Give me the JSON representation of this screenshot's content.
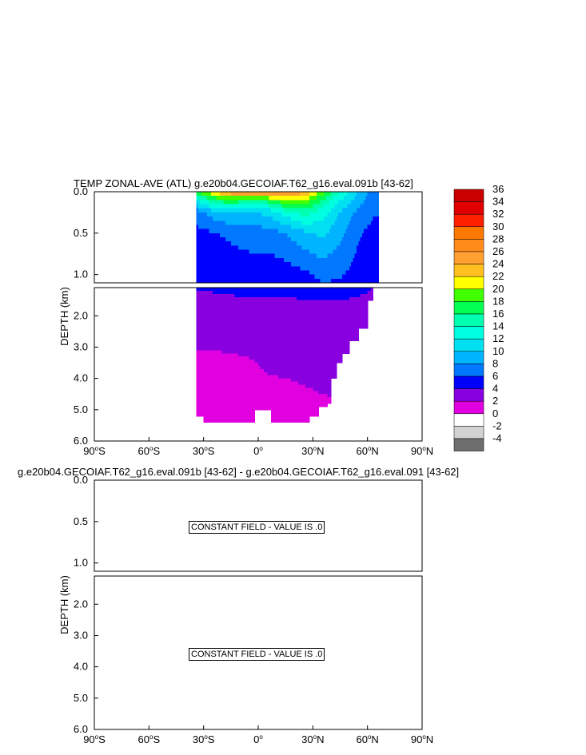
{
  "panels": [
    {
      "title": "TEMP ZONAL-AVE (ATL) g.e20b04.GECOIAF.T62_g16.eval.091b [43-62]",
      "ylabel": "DEPTH (km)",
      "y_upper_ticks": [
        "0.0",
        "0.5",
        "1.0"
      ],
      "y_lower_ticks": [
        "2.0",
        "3.0",
        "4.0",
        "5.0",
        "6.0"
      ],
      "x_ticks": [
        {
          "deg": "90",
          "hemi": "S"
        },
        {
          "deg": "60",
          "hemi": "S"
        },
        {
          "deg": "30",
          "hemi": "S"
        },
        {
          "deg": "0",
          "hemi": ""
        },
        {
          "deg": "30",
          "hemi": "N"
        },
        {
          "deg": "60",
          "hemi": "N"
        },
        {
          "deg": "90",
          "hemi": "N"
        }
      ]
    },
    {
      "title": "g.e20b04.GECOIAF.T62_g16.eval.091b [43-62] - g.e20b04.GECOIAF.T62_g16.eval.091 [43-62]",
      "ylabel": "DEPTH (km)",
      "y_upper_ticks": [
        "0.0",
        "0.5",
        "1.0"
      ],
      "y_lower_ticks": [
        "2.0",
        "3.0",
        "4.0",
        "5.0",
        "6.0"
      ],
      "x_ticks": [
        {
          "deg": "90",
          "hemi": "S"
        },
        {
          "deg": "60",
          "hemi": "S"
        },
        {
          "deg": "30",
          "hemi": "S"
        },
        {
          "deg": "0",
          "hemi": ""
        },
        {
          "deg": "30",
          "hemi": "N"
        },
        {
          "deg": "60",
          "hemi": "N"
        },
        {
          "deg": "90",
          "hemi": "N"
        }
      ],
      "notice_upper": "CONSTANT FIELD - VALUE IS .0",
      "notice_lower": "CONSTANT FIELD - VALUE IS .0"
    }
  ],
  "chart_data": [
    {
      "type": "heatmap",
      "title": "TEMP ZONAL-AVE (ATL) g.e20b04.GECOIAF.T62_g16.eval.091b [43-62]",
      "xlabel": "",
      "ylabel": "DEPTH (km)",
      "xlim": [
        -90,
        90
      ],
      "ylim_upper_km": [
        0,
        1.1
      ],
      "ylim_lower_km": [
        1.1,
        6.0
      ],
      "data_lat_range": [
        -34,
        66
      ],
      "max_depth_km": 5.4,
      "colorbar": {
        "labels": [
          "36",
          "34",
          "32",
          "30",
          "28",
          "26",
          "24",
          "22",
          "20",
          "18",
          "16",
          "14",
          "12",
          "10",
          "8",
          "6",
          "4",
          "2",
          "0",
          "-2",
          "-4"
        ],
        "bins": [
          {
            "lo": 34,
            "hi": 36,
            "color": "#c80000"
          },
          {
            "lo": 32,
            "hi": 34,
            "color": "#e00000"
          },
          {
            "lo": 30,
            "hi": 32,
            "color": "#ff2000"
          },
          {
            "lo": 28,
            "hi": 30,
            "color": "#ff7800"
          },
          {
            "lo": 26,
            "hi": 28,
            "color": "#ff8c1a"
          },
          {
            "lo": 24,
            "hi": 26,
            "color": "#ffa030"
          },
          {
            "lo": 22,
            "hi": 24,
            "color": "#ffc020"
          },
          {
            "lo": 20,
            "hi": 22,
            "color": "#ffff00"
          },
          {
            "lo": 18,
            "hi": 20,
            "color": "#40ff00"
          },
          {
            "lo": 16,
            "hi": 18,
            "color": "#00ff50"
          },
          {
            "lo": 14,
            "hi": 16,
            "color": "#00ffb0"
          },
          {
            "lo": 12,
            "hi": 14,
            "color": "#00ffe0"
          },
          {
            "lo": 10,
            "hi": 12,
            "color": "#00e0f0"
          },
          {
            "lo": 8,
            "hi": 10,
            "color": "#00b4ff"
          },
          {
            "lo": 6,
            "hi": 8,
            "color": "#0078ff"
          },
          {
            "lo": 4,
            "hi": 6,
            "color": "#0000ff"
          },
          {
            "lo": 2,
            "hi": 4,
            "color": "#8800e0"
          },
          {
            "lo": 0,
            "hi": 2,
            "color": "#e000e0"
          },
          {
            "lo": -2,
            "hi": 0,
            "color": "#ffffff"
          },
          {
            "lo": -4,
            "hi": -2,
            "color": "#d2d2d2"
          },
          {
            "lo": -6,
            "hi": -4,
            "color": "#6e6e6e"
          }
        ]
      },
      "temperature_profiles": [
        {
          "lat": -34,
          "t": [
            18,
            12,
            7,
            5.5,
            4.2,
            3.6,
            2.8,
            1.5,
            1.0,
            0.8
          ]
        },
        {
          "lat": -25,
          "t": [
            22,
            16,
            9,
            5.8,
            4.4,
            3.6,
            2.8,
            1.5,
            1.0,
            0.8
          ]
        },
        {
          "lat": -15,
          "t": [
            26,
            18,
            10,
            6.5,
            4.6,
            3.7,
            2.9,
            1.6,
            1.0,
            0.8
          ]
        },
        {
          "lat": -5,
          "t": [
            28,
            16,
            10,
            7,
            4.8,
            3.8,
            3.0,
            1.8,
            1.2,
            0.9
          ]
        },
        {
          "lat": 5,
          "t": [
            28,
            17,
            10.5,
            7,
            4.8,
            3.8,
            3.0,
            2.3,
            1.5,
            1.0
          ]
        },
        {
          "lat": 15,
          "t": [
            27,
            20,
            13,
            8,
            5,
            3.8,
            3.0,
            2.4,
            1.6,
            1.0
          ]
        },
        {
          "lat": 25,
          "t": [
            25,
            20,
            15,
            9.5,
            5.5,
            3.9,
            3.1,
            2.5,
            1.8,
            1.2
          ]
        },
        {
          "lat": 35,
          "t": [
            19,
            16,
            13,
            10.5,
            6.5,
            4.0,
            3.2,
            2.6,
            2.0,
            1.5
          ]
        },
        {
          "lat": 45,
          "t": [
            14,
            12,
            10,
            8.5,
            6.2,
            4.0,
            3.2,
            2.6,
            2.1,
            1.6
          ]
        },
        {
          "lat": 55,
          "t": [
            10,
            9,
            7.5,
            6.2,
            5.2,
            3.6,
            3.0,
            2.5,
            2.1,
            1.7
          ]
        },
        {
          "lat": 63,
          "t": [
            7,
            6.8,
            6.2,
            5.5,
            4.2,
            3.2,
            2.8,
            2.4,
            2.0,
            1.6
          ]
        }
      ],
      "depth_levels_km": [
        0,
        0.1,
        0.25,
        0.5,
        1.0,
        1.5,
        2.5,
        3.5,
        4.5,
        5.4
      ]
    },
    {
      "type": "heatmap",
      "title": "g.e20b04.GECOIAF.T62_g16.eval.091b [43-62] - g.e20b04.GECOIAF.T62_g16.eval.091 [43-62]",
      "ylabel": "DEPTH (km)",
      "xlim": [
        -90,
        90
      ],
      "ylim_upper_km": [
        0,
        1.1
      ],
      "ylim_lower_km": [
        1.1,
        6.0
      ],
      "constant_value": 0
    }
  ]
}
